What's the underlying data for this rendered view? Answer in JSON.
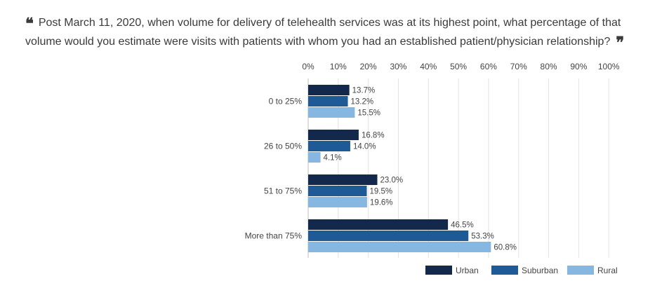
{
  "question": {
    "open_quote": "❝",
    "text": "Post March 11, 2020, when volume for delivery of telehealth services was at its highest point, what percentage of that volume would you estimate were visits with patients with whom you had an established patient/physician relationship?",
    "close_quote": "❞"
  },
  "chart_data": {
    "type": "bar",
    "orientation": "horizontal",
    "categories": [
      "0 to 25%",
      "26 to 50%",
      "51 to 75%",
      "More than 75%"
    ],
    "series": [
      {
        "name": "Urban",
        "color": "#14284b",
        "values": [
          13.7,
          16.8,
          23.0,
          46.5
        ]
      },
      {
        "name": "Suburban",
        "color": "#1f5a96",
        "values": [
          13.2,
          14.0,
          19.5,
          53.3
        ]
      },
      {
        "name": "Rural",
        "color": "#85b7e0",
        "values": [
          15.5,
          4.1,
          19.6,
          60.8
        ]
      }
    ],
    "value_labels": [
      [
        "13.7%",
        "16.8%",
        "23.0%",
        "46.5%"
      ],
      [
        "13.2%",
        "14.0%",
        "19.5%",
        "53.3%"
      ],
      [
        "15.5%",
        "4.1%",
        "19.6%",
        "60.8%"
      ]
    ],
    "xlim": [
      0,
      100
    ],
    "ticks": [
      "0%",
      "10%",
      "20%",
      "30%",
      "40%",
      "50%",
      "60%",
      "70%",
      "80%",
      "90%",
      "100%"
    ],
    "tick_values": [
      0,
      10,
      20,
      30,
      40,
      50,
      60,
      70,
      80,
      90,
      100
    ],
    "grid": true,
    "legend_position": "bottom-right"
  }
}
